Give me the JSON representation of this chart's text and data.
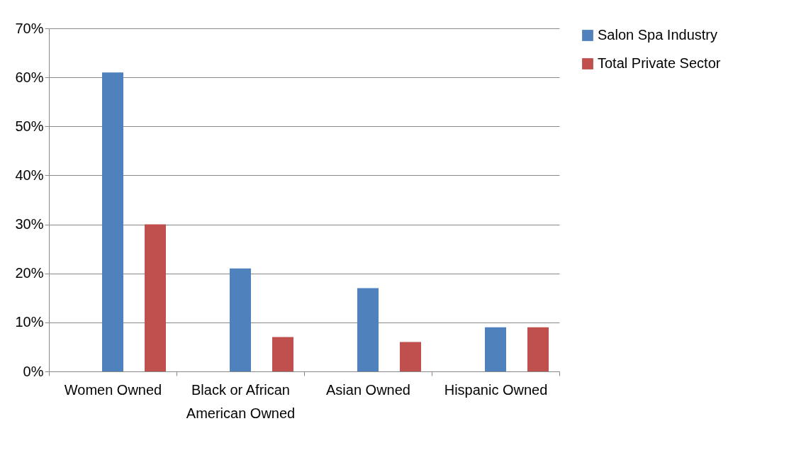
{
  "chart_data": {
    "type": "bar",
    "categories": [
      "Women Owned",
      "Black or African American Owned",
      "Asian Owned",
      "Hispanic Owned"
    ],
    "series": [
      {
        "name": "Salon Spa Industry",
        "color": "#4f81bd",
        "values": [
          61,
          21,
          17,
          9
        ]
      },
      {
        "name": "Total Private Sector",
        "color": "#c0504d",
        "values": [
          30,
          7,
          6,
          9
        ]
      }
    ],
    "ylim": [
      0,
      70
    ],
    "yticks": [
      {
        "value": 0,
        "label": "0%"
      },
      {
        "value": 10,
        "label": "10%"
      },
      {
        "value": 20,
        "label": "20%"
      },
      {
        "value": 30,
        "label": "30%"
      },
      {
        "value": 40,
        "label": "40%"
      },
      {
        "value": 50,
        "label": "50%"
      },
      {
        "value": 60,
        "label": "60%"
      },
      {
        "value": 70,
        "label": "70%"
      }
    ],
    "grid": "y",
    "legend": "right"
  }
}
